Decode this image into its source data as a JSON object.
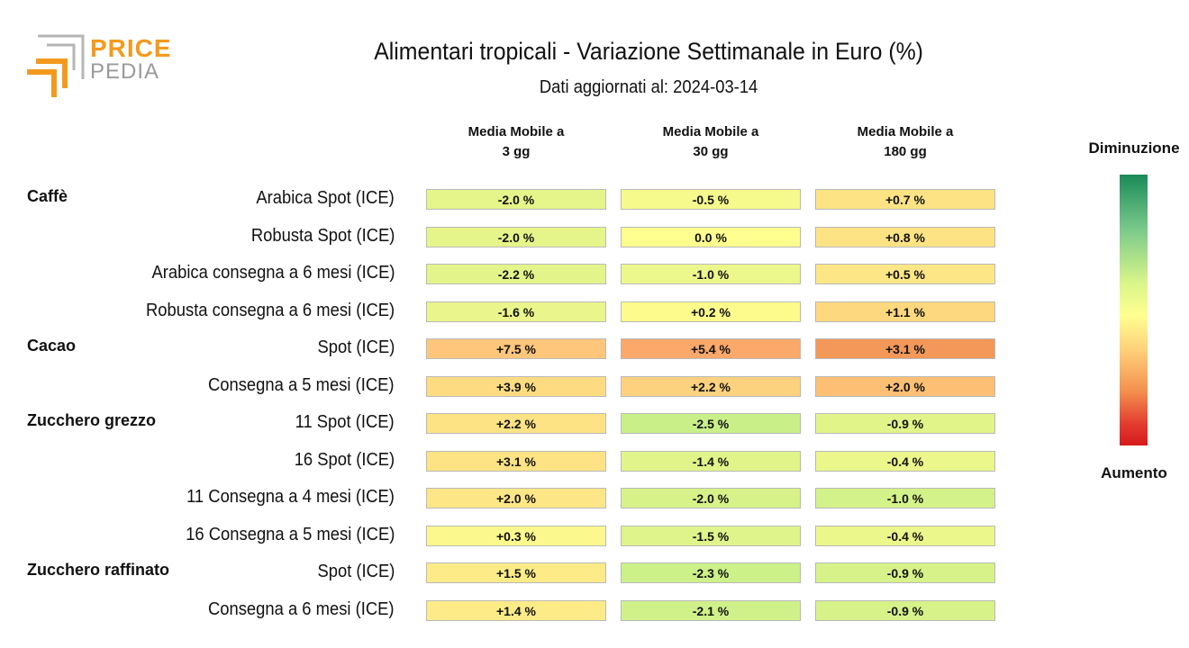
{
  "logo": {
    "word1": "PRICE",
    "word2": "PEDIA"
  },
  "header": {
    "title": "Alimentari tropicali - Variazione Settimanale in Euro (%)",
    "subtitle": "Dati aggiornati al: 2024-03-14"
  },
  "legend": {
    "top": "Diminuzione",
    "bottom": "Aumento"
  },
  "colors": {
    "brand_orange": "#f39a1e",
    "brand_gray": "#9a9a9a",
    "scale_low": "#1a8a5a",
    "scale_mid": "#ffff8f",
    "scale_high": "#d7191c"
  },
  "chart_data": {
    "type": "heatmap",
    "title": "Alimentari tropicali - Variazione Settimanale in Euro (%)",
    "subtitle": "Dati aggiornati al: 2024-03-14",
    "columns": [
      "Media Mobile a\n3 gg",
      "Media Mobile a\n30 gg",
      "Media Mobile a\n180 gg"
    ],
    "column_lines": [
      [
        "Media Mobile a",
        "3 gg"
      ],
      [
        "Media Mobile a",
        "30 gg"
      ],
      [
        "Media Mobile a",
        "180 gg"
      ]
    ],
    "rows": [
      {
        "group": "Caffè",
        "label": "Arabica Spot (ICE)",
        "values": [
          -2.0,
          -0.5,
          0.7
        ],
        "display": [
          "-2.0 %",
          "-0.5 %",
          "+0.7 %"
        ]
      },
      {
        "group": "",
        "label": "Robusta Spot (ICE)",
        "values": [
          -2.0,
          0.0,
          0.8
        ],
        "display": [
          "-2.0 %",
          "0.0 %",
          "+0.8 %"
        ]
      },
      {
        "group": "",
        "label": "Arabica consegna a 6 mesi (ICE)",
        "values": [
          -2.2,
          -1.0,
          0.5
        ],
        "display": [
          "-2.2 %",
          "-1.0 %",
          "+0.5 %"
        ]
      },
      {
        "group": "",
        "label": "Robusta consegna a 6 mesi (ICE)",
        "values": [
          -1.6,
          0.2,
          1.1
        ],
        "display": [
          "-1.6 %",
          "+0.2 %",
          "+1.1 %"
        ]
      },
      {
        "group": "Cacao",
        "label": "Spot (ICE)",
        "values": [
          7.5,
          5.4,
          3.1
        ],
        "display": [
          "+7.5 %",
          "+5.4 %",
          "+3.1 %"
        ]
      },
      {
        "group": "",
        "label": "Consegna a 5 mesi (ICE)",
        "values": [
          3.9,
          2.2,
          2.0
        ],
        "display": [
          "+3.9 %",
          "+2.2 %",
          "+2.0 %"
        ]
      },
      {
        "group": "Zucchero grezzo",
        "label": "11 Spot (ICE)",
        "values": [
          2.2,
          -2.5,
          -0.9
        ],
        "display": [
          "+2.2 %",
          "-2.5 %",
          "-0.9 %"
        ]
      },
      {
        "group": "",
        "label": "16 Spot (ICE)",
        "values": [
          3.1,
          -1.4,
          -0.4
        ],
        "display": [
          "+3.1 %",
          "-1.4 %",
          "-0.4 %"
        ]
      },
      {
        "group": "",
        "label": "11 Consegna a 4 mesi (ICE)",
        "values": [
          2.0,
          -2.0,
          -1.0
        ],
        "display": [
          "+2.0 %",
          "-2.0 %",
          "-1.0 %"
        ]
      },
      {
        "group": "",
        "label": "16 Consegna a 5 mesi (ICE)",
        "values": [
          0.3,
          -1.5,
          -0.4
        ],
        "display": [
          "+0.3 %",
          "-1.5 %",
          "-0.4 %"
        ]
      },
      {
        "group": "Zucchero raffinato",
        "label": "Spot (ICE)",
        "values": [
          1.5,
          -2.3,
          -0.9
        ],
        "display": [
          "+1.5 %",
          "-2.3 %",
          "-0.9 %"
        ]
      },
      {
        "group": "",
        "label": "Consegna a 6 mesi (ICE)",
        "values": [
          1.4,
          -2.1,
          -0.9
        ],
        "display": [
          "+1.4 %",
          "-2.1 %",
          "-0.9 %"
        ]
      }
    ],
    "cell_colors": [
      [
        "#e6f58a",
        "#f6fa8d",
        "#fde384"
      ],
      [
        "#e6f58a",
        "#ffff8f",
        "#fde384"
      ],
      [
        "#e3f48a",
        "#ecf88b",
        "#fde686"
      ],
      [
        "#eaf68b",
        "#fefb8d",
        "#fdd87e"
      ],
      [
        "#fdc67b",
        "#fba86a",
        "#f39858"
      ],
      [
        "#fddc81",
        "#fdd27e",
        "#fcbf74"
      ],
      [
        "#fde384",
        "#c9f088",
        "#e1f48a"
      ],
      [
        "#fde384",
        "#e1f48a",
        "#ebf78b"
      ],
      [
        "#fde686",
        "#d6f289",
        "#d3f289"
      ],
      [
        "#fbf88d",
        "#dff48a",
        "#ecf78b"
      ],
      [
        "#fdeb88",
        "#ccf188",
        "#d6f289"
      ],
      [
        "#fdeb88",
        "#d0f189",
        "#d6f289"
      ]
    ]
  }
}
